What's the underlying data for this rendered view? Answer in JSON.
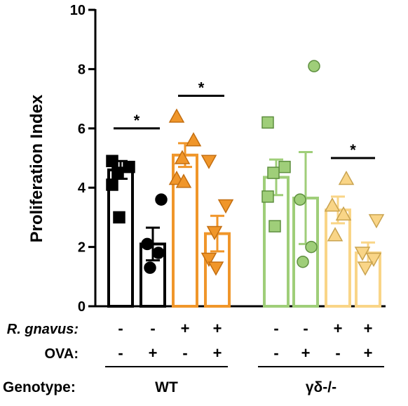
{
  "chart_data": {
    "type": "bar",
    "ylabel": "Proliferation Index",
    "ylim": [
      0,
      10
    ],
    "yticks": [
      0,
      2,
      4,
      6,
      8,
      10
    ],
    "grid": false,
    "rows": [
      {
        "label": "R. gnavus:",
        "signs": [
          "-",
          "-",
          "+",
          "+",
          "-",
          "-",
          "+",
          "+"
        ]
      },
      {
        "label": "OVA:",
        "signs": [
          "-",
          "+",
          "-",
          "+",
          "-",
          "+",
          "-",
          "+"
        ]
      }
    ],
    "genotype_label": "Genotype:",
    "groups": [
      {
        "label": "WT",
        "bars": [
          0,
          1,
          2,
          3
        ]
      },
      {
        "label": "γδ-/-",
        "bars": [
          4,
          5,
          6,
          7
        ]
      }
    ],
    "bars": [
      {
        "mean": 4.6,
        "sem": 0.3,
        "color": "#000000",
        "fill": "#000000",
        "marker": "square",
        "points": [
          4.9,
          4.7,
          4.5,
          4.1,
          3.0
        ]
      },
      {
        "mean": 2.1,
        "sem": 0.55,
        "color": "#000000",
        "fill": "#000000",
        "marker": "circle",
        "points": [
          3.6,
          2.1,
          1.8,
          1.3
        ]
      },
      {
        "mean": 5.1,
        "sem": 0.4,
        "color": "#f0962a",
        "fill": "#f0962a",
        "marker": "triangle-up",
        "points": [
          6.4,
          5.6,
          5.0,
          4.3,
          4.2
        ]
      },
      {
        "mean": 2.45,
        "sem": 0.6,
        "color": "#f0962a",
        "fill": "#f0962a",
        "marker": "triangle-down",
        "points": [
          4.9,
          3.4,
          2.5,
          1.6,
          1.3
        ]
      },
      {
        "mean": 4.35,
        "sem": 0.6,
        "color": "#9fce79",
        "fill": "#9fce79",
        "marker": "square",
        "points": [
          6.2,
          4.7,
          4.5,
          3.7,
          2.7
        ]
      },
      {
        "mean": 3.65,
        "sem": 1.55,
        "color": "#9fce79",
        "fill": "#9fce79",
        "marker": "circle",
        "points": [
          8.1,
          3.6,
          2.0,
          1.5
        ]
      },
      {
        "mean": 3.25,
        "sem": 0.45,
        "color": "#f9d587",
        "fill": "#f9d587",
        "marker": "triangle-up",
        "points": [
          4.3,
          3.4,
          3.1,
          2.4
        ]
      },
      {
        "mean": 1.8,
        "sem": 0.35,
        "color": "#f9d587",
        "fill": "#f9d587",
        "marker": "triangle-down",
        "points": [
          2.9,
          1.8,
          1.6,
          1.3
        ]
      }
    ],
    "significance": [
      {
        "from": 0,
        "to": 1,
        "y": 6.0,
        "label": "*"
      },
      {
        "from": 2,
        "to": 3,
        "y": 7.1,
        "label": "*"
      },
      {
        "from": 6,
        "to": 7,
        "y": 5.0,
        "label": "*"
      }
    ]
  }
}
